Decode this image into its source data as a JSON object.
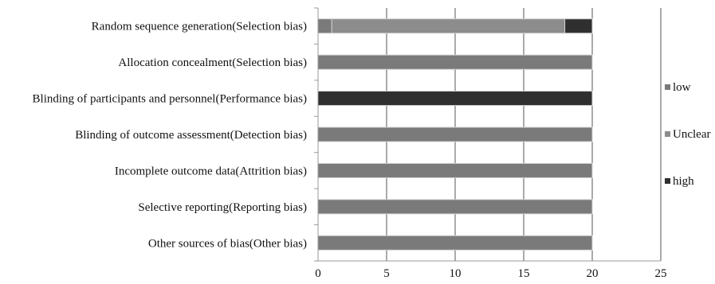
{
  "chart_data": {
    "type": "bar",
    "orientation": "horizontal",
    "stacked": true,
    "title": "",
    "xlabel": "",
    "ylabel": "",
    "xlim": [
      0,
      25
    ],
    "xticks": [
      0,
      5,
      10,
      15,
      20,
      25
    ],
    "grid": "vertical",
    "legend_position": "right",
    "categories": [
      "Random sequence generation(Selection bias)",
      "Allocation concealment(Selection bias)",
      "Blinding of participants and personnel(Performance bias)",
      "Blinding of outcome assessment(Detection bias)",
      "Incomplete outcome data(Attrition bias)",
      "Selective reporting(Reporting bias)",
      "Other sources of bias(Other bias)"
    ],
    "series": [
      {
        "name": "low",
        "color": "#7a7a7a",
        "values": [
          1,
          20,
          0,
          20,
          20,
          20,
          20
        ]
      },
      {
        "name": "Unclear",
        "color": "#8c8c8c",
        "values": [
          17,
          0,
          0,
          0,
          0,
          0,
          0
        ]
      },
      {
        "name": "high",
        "color": "#2f2f2f",
        "values": [
          2,
          0,
          20,
          0,
          0,
          0,
          0
        ]
      }
    ]
  }
}
